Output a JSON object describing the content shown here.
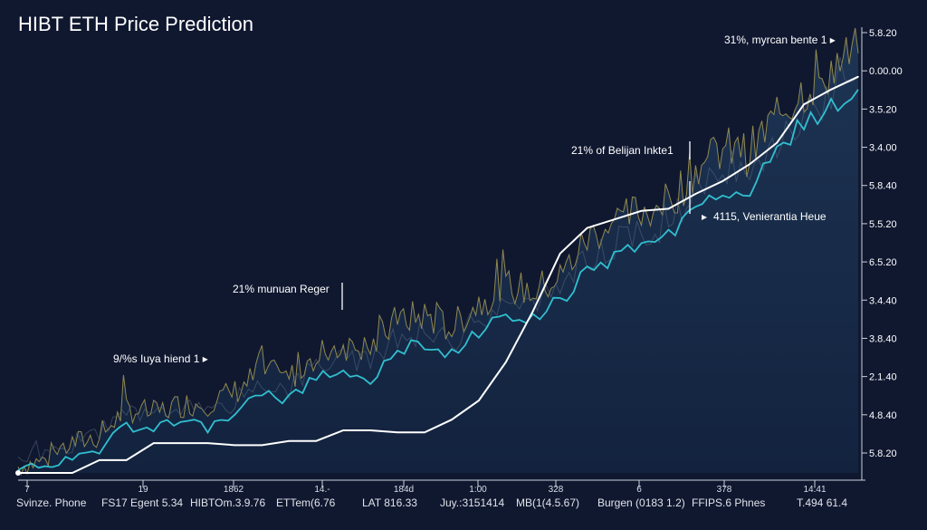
{
  "chart_data": {
    "type": "line",
    "title": "HIBT ETH Price Prediction",
    "y_tick_labels": [
      "5.8.20",
      "0.00.00",
      "3.5.20",
      "3.4.00",
      "5.8.40",
      "5.5.20",
      "6.5.20",
      "3.4.40",
      "3.8.40",
      "2.1.40",
      "4.8.40",
      "5.8.20"
    ],
    "x_tick_top": [
      "7",
      "19",
      "1862",
      "14.-",
      "184d",
      "1:00",
      "328",
      "6",
      "378",
      "14:41"
    ],
    "x_tick_bottom": [
      "Svinze. Phone",
      "FS17 Egent 5.34",
      "HIBTOm.3.9.76",
      "ETTem(6.76",
      "LAT 816.33",
      "Juy.:3151414",
      "MB(1(4.5.67)",
      "Burgen (0183 1.2)",
      "FFIPS.6   Phnes",
      "T.494 61.4"
    ],
    "annotations": [
      {
        "text": "31%, myrcan bente 1 ▸"
      },
      {
        "text": "21% of Belijan Inkte1"
      },
      {
        "text": "4115, Venierantia Heue"
      },
      {
        "text": "21% munuan Reger"
      },
      {
        "text": "9/%s Iuya hiend 1 ▸"
      }
    ],
    "x": [
      0,
      1,
      2,
      3,
      4,
      5,
      6,
      7,
      8,
      9,
      10,
      11,
      12,
      13,
      14,
      15,
      16,
      17,
      18,
      19,
      20,
      21,
      22,
      23,
      24,
      25,
      26,
      27,
      28,
      29,
      30,
      31
    ],
    "series": [
      {
        "role": "volatile",
        "color": "#a79b52",
        "values": [
          3,
          6,
          14,
          17,
          30,
          28,
          32,
          33,
          38,
          48,
          44,
          56,
          60,
          58,
          72,
          74,
          68,
          80,
          88,
          85,
          92,
          110,
          118,
          123,
          127,
          143,
          152,
          150,
          168,
          180,
          190,
          197
        ]
      },
      {
        "role": "smoothed",
        "color": "#31bfd0",
        "values": [
          2,
          3,
          8,
          11,
          22,
          20,
          26,
          21,
          28,
          37,
          34,
          45,
          48,
          44,
          58,
          60,
          56,
          66,
          74,
          72,
          79,
          95,
          101,
          106,
          112,
          125,
          133,
          132,
          150,
          162,
          173,
          180
        ]
      },
      {
        "role": "trend",
        "color": "#ffffff",
        "values": [
          0,
          0,
          0,
          6,
          6,
          14,
          14,
          14,
          13,
          13,
          15,
          15,
          20,
          20,
          19,
          19,
          25,
          34,
          52,
          76,
          103,
          115,
          119,
          123,
          124,
          131,
          137,
          145,
          155,
          173,
          180,
          186
        ]
      }
    ],
    "y_range": [
      0,
      205
    ],
    "grid": false,
    "legend": "none"
  }
}
